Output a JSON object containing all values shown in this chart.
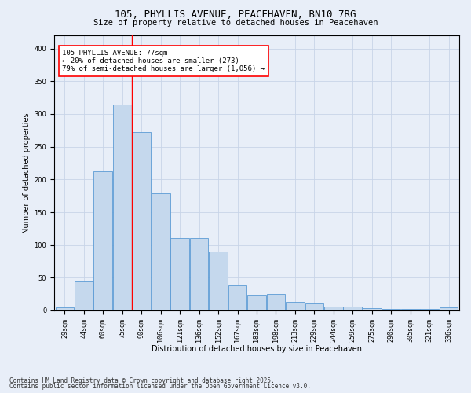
{
  "title1": "105, PHYLLIS AVENUE, PEACEHAVEN, BN10 7RG",
  "title2": "Size of property relative to detached houses in Peacehaven",
  "xlabel": "Distribution of detached houses by size in Peacehaven",
  "ylabel": "Number of detached properties",
  "categories": [
    "29sqm",
    "44sqm",
    "60sqm",
    "75sqm",
    "90sqm",
    "106sqm",
    "121sqm",
    "136sqm",
    "152sqm",
    "167sqm",
    "183sqm",
    "198sqm",
    "213sqm",
    "229sqm",
    "244sqm",
    "259sqm",
    "275sqm",
    "290sqm",
    "305sqm",
    "321sqm",
    "336sqm"
  ],
  "bar_values": [
    5,
    44,
    213,
    315,
    272,
    179,
    110,
    110,
    90,
    39,
    24,
    25,
    13,
    11,
    6,
    6,
    4,
    3,
    2,
    2,
    5
  ],
  "bar_color": "#c5d8ed",
  "bar_edge_color": "#5b9bd5",
  "vline_color": "red",
  "annotation_box_text": "105 PHYLLIS AVENUE: 77sqm\n← 20% of detached houses are smaller (273)\n79% of semi-detached houses are larger (1,056) →",
  "annotation_box_color": "red",
  "annotation_box_fill": "white",
  "ylim": [
    0,
    420
  ],
  "yticks": [
    0,
    50,
    100,
    150,
    200,
    250,
    300,
    350,
    400
  ],
  "grid_color": "#c8d4e8",
  "background_color": "#e8eef8",
  "footer1": "Contains HM Land Registry data © Crown copyright and database right 2025.",
  "footer2": "Contains public sector information licensed under the Open Government Licence v3.0.",
  "title_fontsize": 9,
  "subtitle_fontsize": 7.5,
  "axis_label_fontsize": 7,
  "tick_fontsize": 6,
  "annotation_fontsize": 6.5,
  "footer_fontsize": 5.5
}
